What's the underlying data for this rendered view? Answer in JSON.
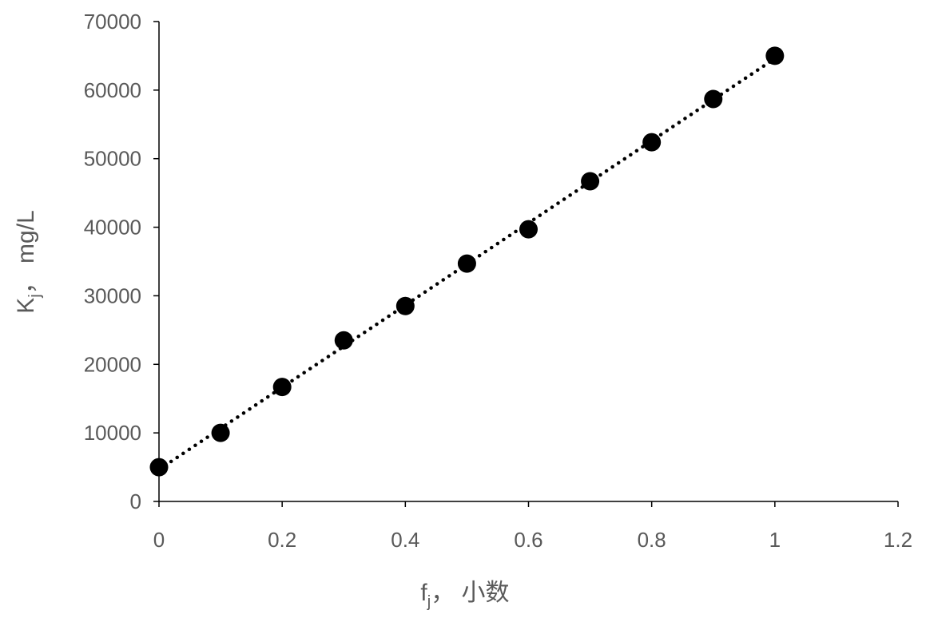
{
  "chart_data": {
    "type": "scatter",
    "title": "",
    "xlabel": {
      "main": "f",
      "sub": "j",
      "rest": "，  小数"
    },
    "ylabel": {
      "main": "K",
      "sub": "j",
      "rest": "，  mg/L"
    },
    "xlim": [
      0,
      1.2
    ],
    "ylim": [
      0,
      70000
    ],
    "xticks": [
      "0",
      "0.2",
      "0.4",
      "0.6",
      "0.8",
      "1",
      "1.2"
    ],
    "yticks": [
      "0",
      "10000",
      "20000",
      "30000",
      "40000",
      "50000",
      "60000",
      "70000"
    ],
    "grid": false,
    "legend": "none",
    "x": [
      0,
      0.1,
      0.2,
      0.3,
      0.4,
      0.5,
      0.6,
      0.7,
      0.8,
      0.9,
      1.0
    ],
    "y": [
      5000,
      10000,
      16700,
      23500,
      28500,
      34700,
      39700,
      46700,
      52400,
      58700,
      65000
    ],
    "trendline": {
      "type": "linear",
      "style": "dotted"
    },
    "colors": {
      "marker": "#000000",
      "trendline": "#000000",
      "axis": "#000000",
      "text": "#595959"
    }
  }
}
